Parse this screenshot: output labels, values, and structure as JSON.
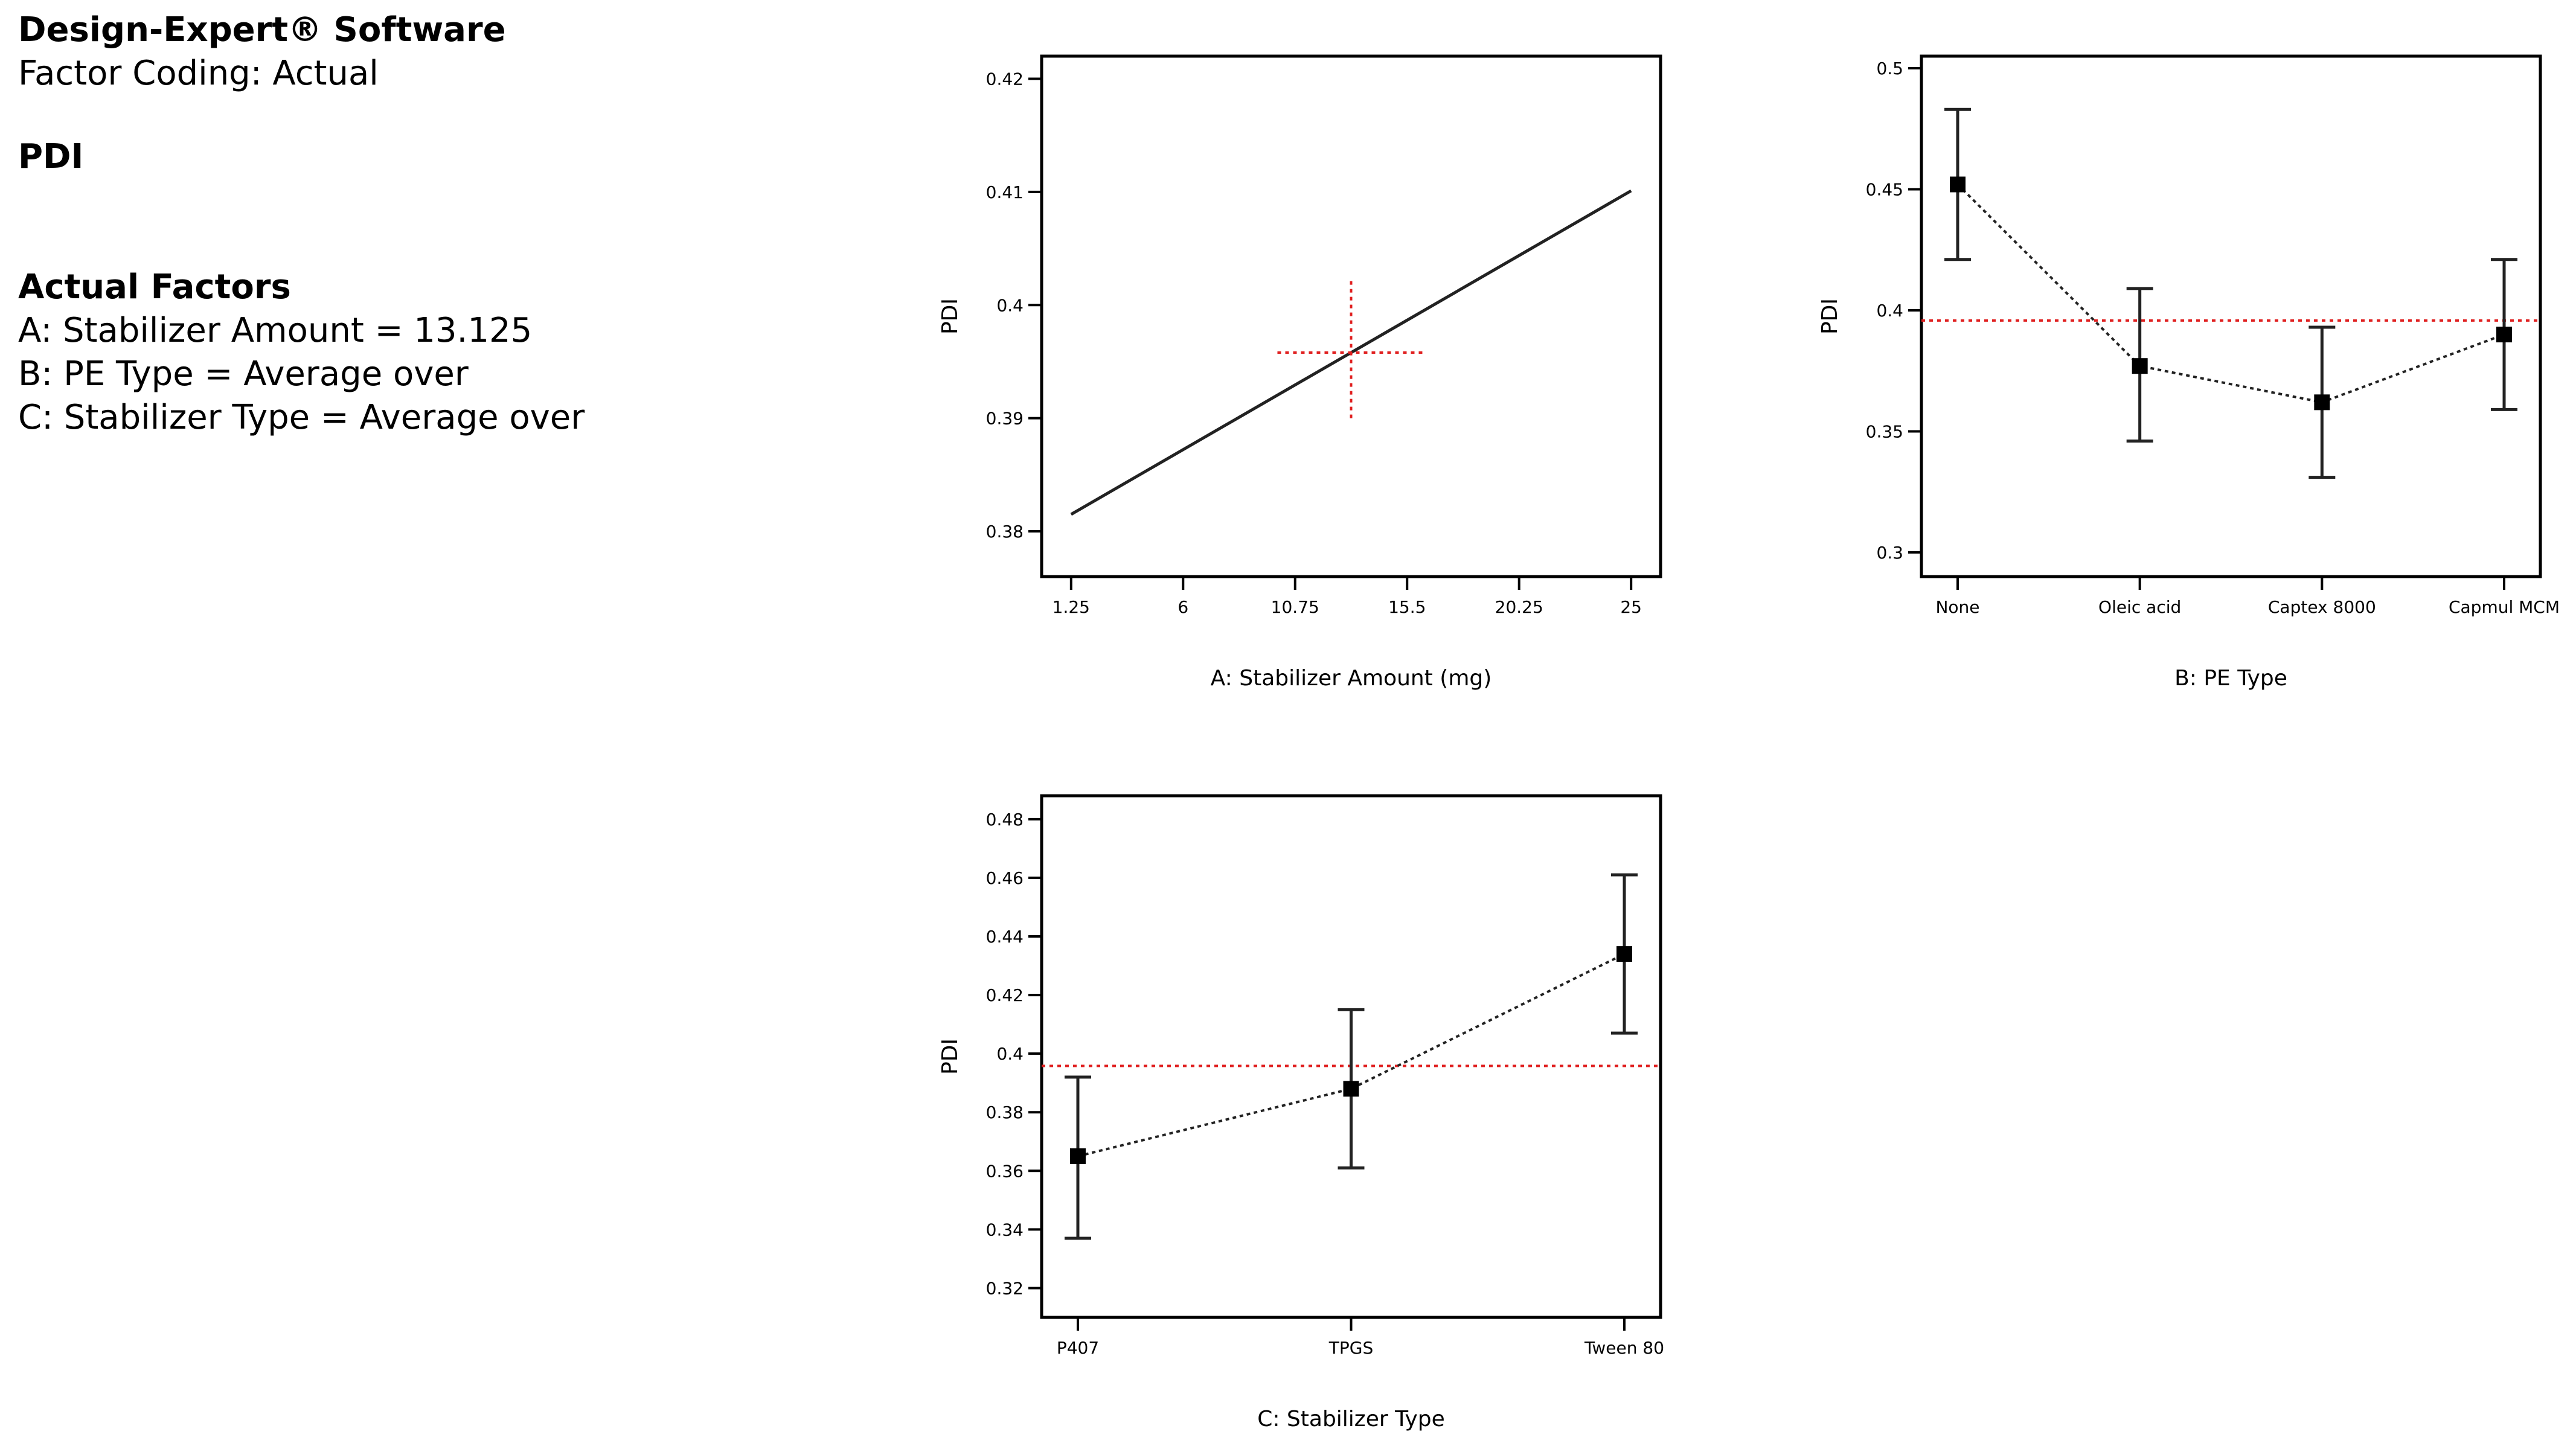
{
  "header": {
    "software": "Design-Expert® Software",
    "coding": "Factor Coding: Actual",
    "response": "PDI",
    "factors_heading": "Actual Factors",
    "factors": [
      "A: Stabilizer Amount = 13.125",
      "B: PE Type = Average over",
      "C: Stabilizer Type = Average over"
    ]
  },
  "colors": {
    "line": "#222222",
    "reference": "#e02020",
    "marker": "#000000"
  },
  "chart_data": [
    {
      "type": "line",
      "title": "",
      "xlabel": "A: Stabilizer Amount (mg)",
      "ylabel": "PDI",
      "xlim": [
        0,
        26.25
      ],
      "ylim": [
        0.376,
        0.422
      ],
      "xticks": [
        1.25,
        6,
        10.75,
        15.5,
        20.25,
        25
      ],
      "xtick_labels": [
        "1.25",
        "6",
        "10.75",
        "15.5",
        "20.25",
        "25"
      ],
      "yticks": [
        0.38,
        0.39,
        0.4,
        0.41,
        0.42
      ],
      "ytick_labels": [
        "0.38",
        "0.39",
        "0.4",
        "0.41",
        "0.42"
      ],
      "series": [
        {
          "x": [
            1.25,
            25
          ],
          "y": [
            0.3815,
            0.4101
          ]
        }
      ],
      "reference": {
        "x": 13.125,
        "y": 0.3958,
        "x_span": [
          10.0,
          16.2
        ],
        "y_span": [
          0.39,
          0.4023
        ],
        "style": "dotted-cross"
      },
      "grid": false
    },
    {
      "type": "line",
      "title": "",
      "xlabel": "B: PE Type",
      "ylabel": "PDI",
      "categories": [
        "None",
        "Oleic acid",
        "Captex 8000",
        "Capmul MCM"
      ],
      "ylim": [
        0.29,
        0.505
      ],
      "yticks": [
        0.3,
        0.35,
        0.4,
        0.45,
        0.5
      ],
      "ytick_labels": [
        "0.3",
        "0.35",
        "0.4",
        "0.45",
        "0.5"
      ],
      "series": [
        {
          "values": [
            0.452,
            0.377,
            0.362,
            0.39
          ],
          "err_low": [
            0.421,
            0.346,
            0.331,
            0.359
          ],
          "err_high": [
            0.483,
            0.409,
            0.393,
            0.421
          ]
        }
      ],
      "reference_y": 0.3958,
      "grid": false
    },
    {
      "type": "line",
      "title": "",
      "xlabel": "C: Stabilizer Type",
      "ylabel": "PDI",
      "categories": [
        "P407",
        "TPGS",
        "Tween 80"
      ],
      "ylim": [
        0.31,
        0.488
      ],
      "yticks": [
        0.32,
        0.34,
        0.36,
        0.38,
        0.4,
        0.42,
        0.44,
        0.46,
        0.48
      ],
      "ytick_labels": [
        "0.32",
        "0.34",
        "0.36",
        "0.38",
        "0.4",
        "0.42",
        "0.44",
        "0.46",
        "0.48"
      ],
      "series": [
        {
          "values": [
            0.365,
            0.388,
            0.434
          ],
          "err_low": [
            0.337,
            0.361,
            0.407
          ],
          "err_high": [
            0.392,
            0.415,
            0.461
          ]
        }
      ],
      "reference_y": 0.3958,
      "grid": false
    }
  ]
}
